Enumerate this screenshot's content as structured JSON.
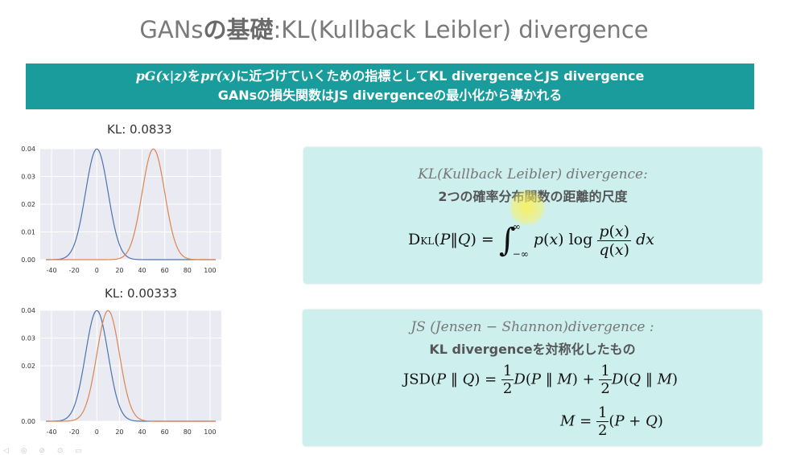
{
  "title": {
    "prefix": "GANs",
    "jp": "の基礎",
    "suffix": ":KL(Kullback Leibler) divergence"
  },
  "banner": {
    "line1_math_a": "pG(x|z)",
    "line1_text_a": "を",
    "line1_math_b": "pr(x)",
    "line1_text_b": "に近づけていくための指標としてKL divergenceとJS divergence",
    "line2": "GANsの損失関数はJS divergenceの最小化から導かれる"
  },
  "chart_data": [
    {
      "type": "line",
      "title": "KL: 0.0833",
      "xlim": [
        -50,
        110
      ],
      "ylim": [
        0,
        0.04
      ],
      "xticks": [
        -40,
        -20,
        0,
        20,
        40,
        60,
        80,
        100
      ],
      "yticks": [
        "0.00",
        "0.01",
        "0.02",
        "0.03",
        "0.04"
      ],
      "series": [
        {
          "mean": 0,
          "std": 10,
          "color": "#4c72b0"
        },
        {
          "mean": 50,
          "std": 10,
          "color": "#dd8452"
        }
      ]
    },
    {
      "type": "line",
      "title": "KL: 0.00333",
      "xlim": [
        -50,
        110
      ],
      "ylim": [
        0,
        0.04
      ],
      "xticks": [
        -40,
        -20,
        0,
        20,
        40,
        60,
        80,
        100
      ],
      "yticks": [
        "0.00",
        "0.02",
        "0.03",
        "0.04"
      ],
      "series": [
        {
          "mean": 0,
          "std": 10,
          "color": "#4c72b0"
        },
        {
          "mean": 10,
          "std": 10,
          "color": "#dd8452"
        }
      ]
    }
  ],
  "kl_panel": {
    "heading": "KL(Kullback Leibler) divergence:",
    "subheading": "2つの確率分布関数の距離的尺度"
  },
  "js_panel": {
    "heading": "JS (Jensen − Shannon)divergence :",
    "subheading": "KL divergenceを対称化したもの"
  }
}
